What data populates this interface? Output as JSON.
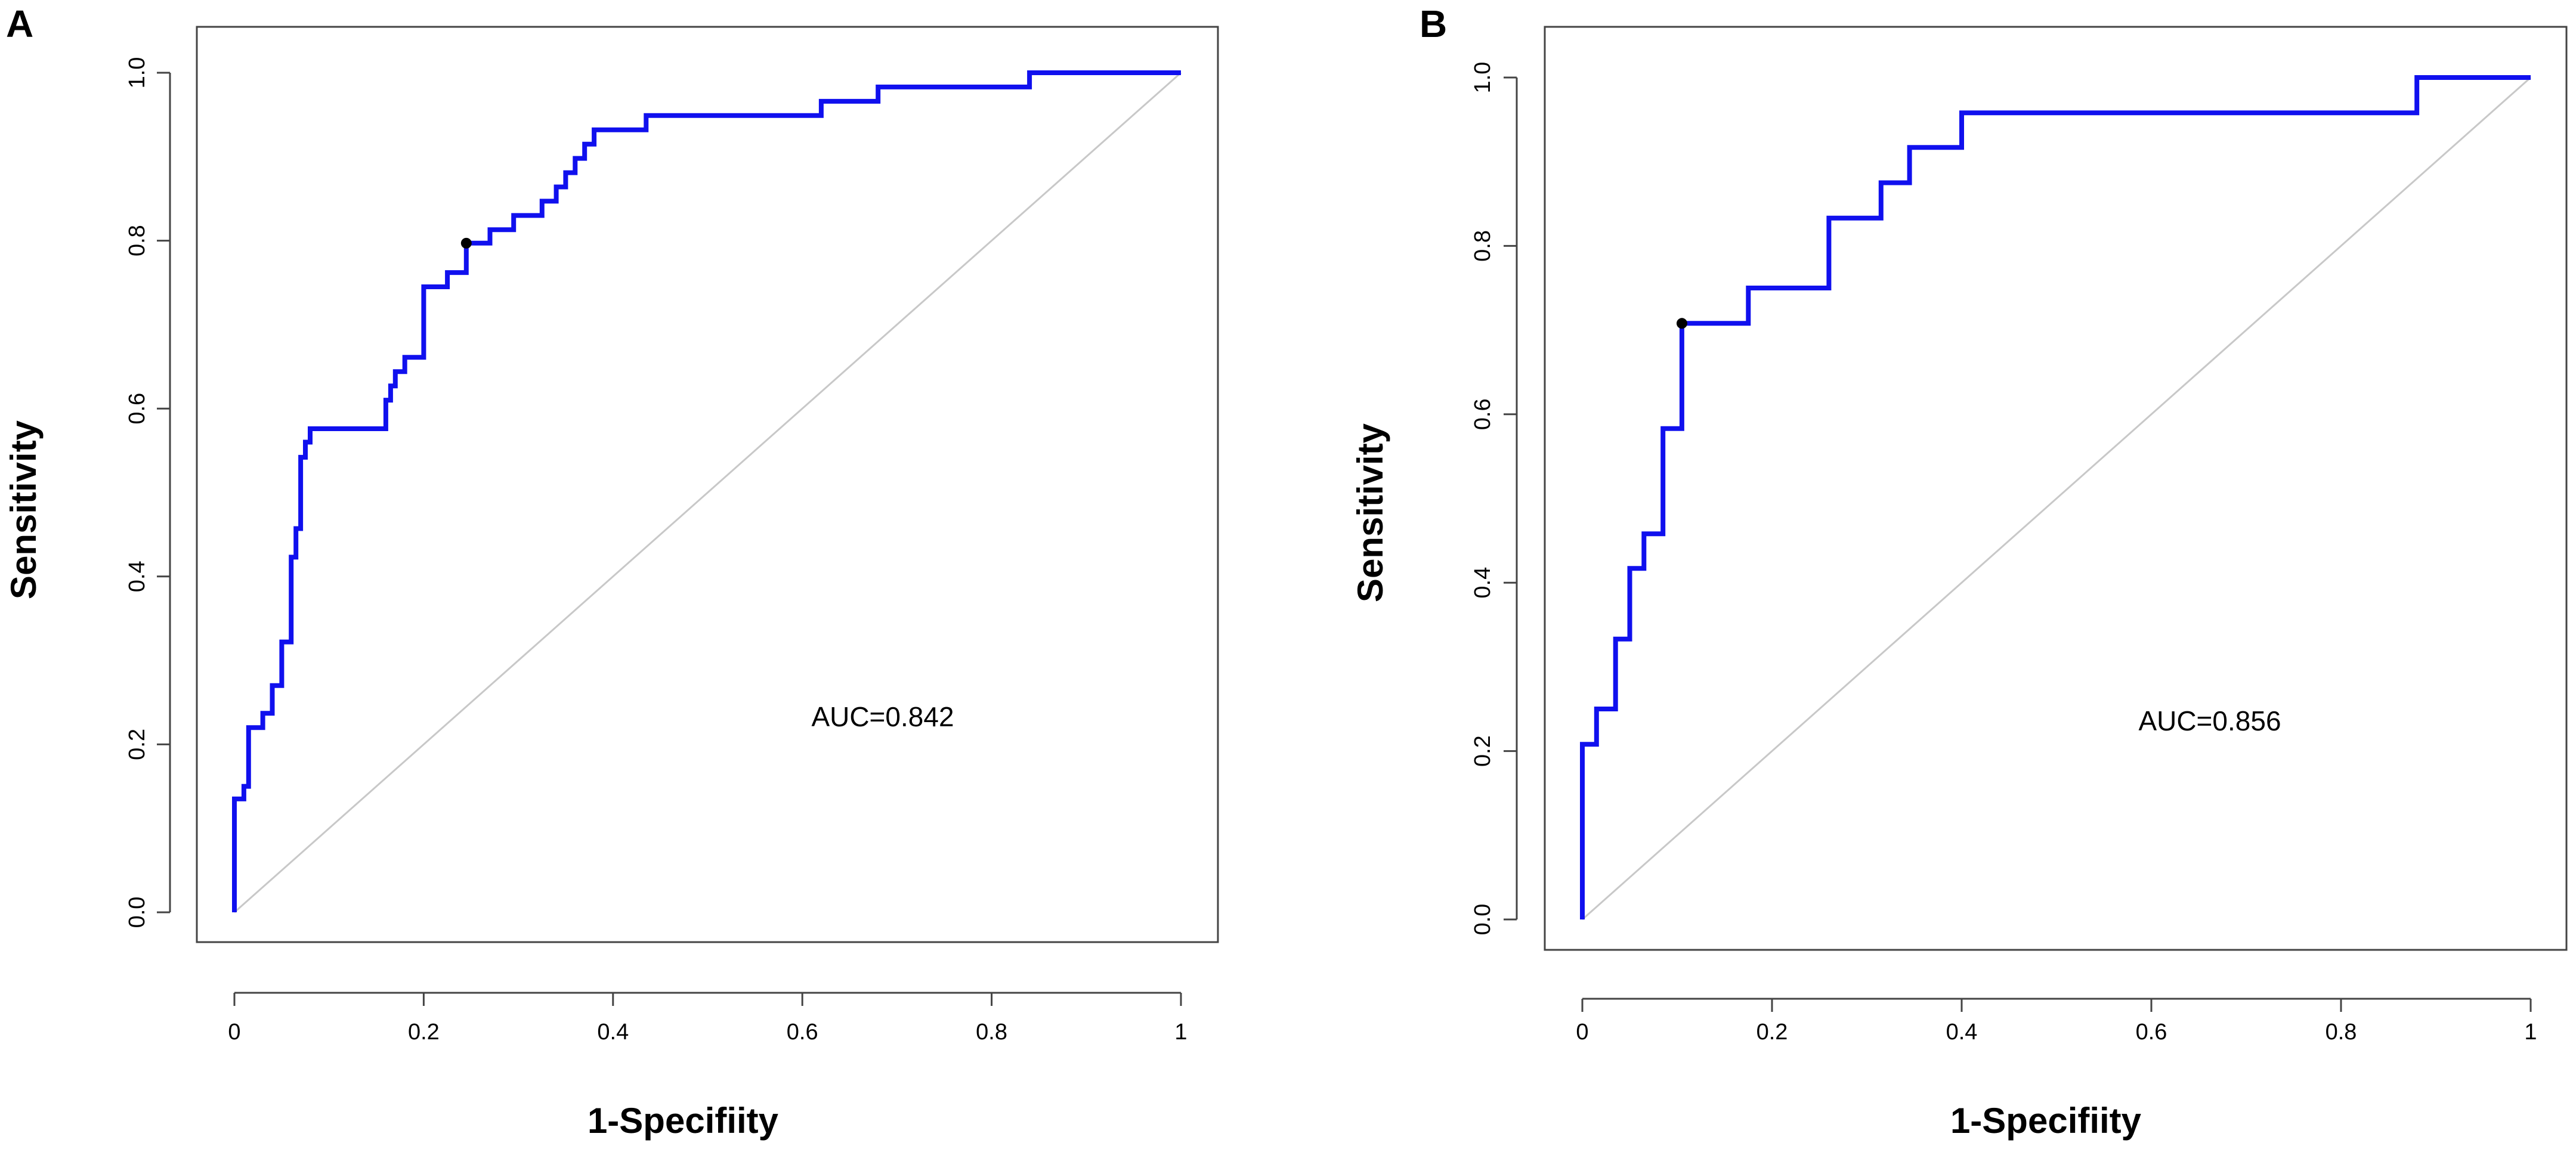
{
  "colors": {
    "roc": "#1010ee",
    "diagonal": "#c8c8c8",
    "frame": "#444444",
    "point": "#000000"
  },
  "chart_data": [
    {
      "type": "line",
      "panel": "A",
      "xlabel": "1-Specifiity",
      "ylabel": "Sensitivity",
      "xlim": [
        0,
        1
      ],
      "ylim": [
        0,
        1
      ],
      "xticks": [
        0,
        0.2,
        0.4,
        0.6,
        0.8,
        1
      ],
      "xtick_labels": [
        "0",
        "0.2",
        "0.4",
        "0.6",
        "0.8",
        "1"
      ],
      "yticks": [
        0,
        0.2,
        0.4,
        0.6,
        0.8,
        1.0
      ],
      "ytick_labels": [
        "0.0",
        "0.2",
        "0.4",
        "0.6",
        "0.8",
        "1.0"
      ],
      "annotation": "AUC=0.842",
      "auc": 0.842,
      "cutoff_point": {
        "x": 0.245,
        "y": 0.797
      },
      "diagonal": true,
      "series": [
        {
          "name": "ROC",
          "x": [
            0,
            0,
            0.01,
            0.01,
            0.015,
            0.015,
            0.03,
            0.03,
            0.04,
            0.04,
            0.05,
            0.05,
            0.06,
            0.06,
            0.065,
            0.065,
            0.07,
            0.07,
            0.075,
            0.075,
            0.08,
            0.08,
            0.16,
            0.16,
            0.165,
            0.165,
            0.17,
            0.17,
            0.18,
            0.18,
            0.2,
            0.2,
            0.225,
            0.225,
            0.245,
            0.245,
            0.27,
            0.27,
            0.295,
            0.295,
            0.325,
            0.325,
            0.34,
            0.34,
            0.35,
            0.35,
            0.36,
            0.36,
            0.37,
            0.37,
            0.38,
            0.38,
            0.435,
            0.435,
            0.445,
            0.445,
            0.62,
            0.62,
            0.68,
            0.68,
            0.84,
            0.84,
            1
          ],
          "y": [
            0,
            0.135,
            0.135,
            0.15,
            0.15,
            0.22,
            0.22,
            0.237,
            0.237,
            0.27,
            0.27,
            0.322,
            0.322,
            0.423,
            0.423,
            0.457,
            0.457,
            0.542,
            0.542,
            0.56,
            0.56,
            0.576,
            0.576,
            0.61,
            0.61,
            0.627,
            0.627,
            0.644,
            0.644,
            0.661,
            0.661,
            0.745,
            0.745,
            0.762,
            0.762,
            0.797,
            0.797,
            0.813,
            0.813,
            0.83,
            0.83,
            0.847,
            0.847,
            0.864,
            0.864,
            0.881,
            0.881,
            0.898,
            0.898,
            0.915,
            0.915,
            0.932,
            0.932,
            0.949,
            0.949,
            0.949,
            0.949,
            0.966,
            0.966,
            0.983,
            0.983,
            1.0,
            1.0
          ]
        }
      ]
    },
    {
      "type": "line",
      "panel": "B",
      "xlabel": "1-Specifiity",
      "ylabel": "Sensitivity",
      "xlim": [
        0,
        1
      ],
      "ylim": [
        0,
        1
      ],
      "xticks": [
        0,
        0.2,
        0.4,
        0.6,
        0.8,
        1
      ],
      "xtick_labels": [
        "0",
        "0.2",
        "0.4",
        "0.6",
        "0.8",
        "1"
      ],
      "yticks": [
        0,
        0.2,
        0.4,
        0.6,
        0.8,
        1.0
      ],
      "ytick_labels": [
        "0.0",
        "0.2",
        "0.4",
        "0.6",
        "0.8",
        "1.0"
      ],
      "annotation": "AUC=0.856",
      "auc": 0.856,
      "cutoff_point": {
        "x": 0.105,
        "y": 0.708
      },
      "diagonal": true,
      "series": [
        {
          "name": "ROC",
          "x": [
            0,
            0,
            0.015,
            0.015,
            0.035,
            0.035,
            0.05,
            0.05,
            0.065,
            0.065,
            0.085,
            0.085,
            0.105,
            0.105,
            0.175,
            0.175,
            0.26,
            0.26,
            0.315,
            0.315,
            0.345,
            0.345,
            0.4,
            0.4,
            0.88,
            0.88,
            1
          ],
          "y": [
            0,
            0.208,
            0.208,
            0.25,
            0.25,
            0.333,
            0.333,
            0.417,
            0.417,
            0.458,
            0.458,
            0.583,
            0.583,
            0.708,
            0.708,
            0.75,
            0.75,
            0.833,
            0.833,
            0.875,
            0.875,
            0.917,
            0.917,
            0.958,
            0.958,
            1.0,
            1.0
          ]
        }
      ]
    }
  ]
}
